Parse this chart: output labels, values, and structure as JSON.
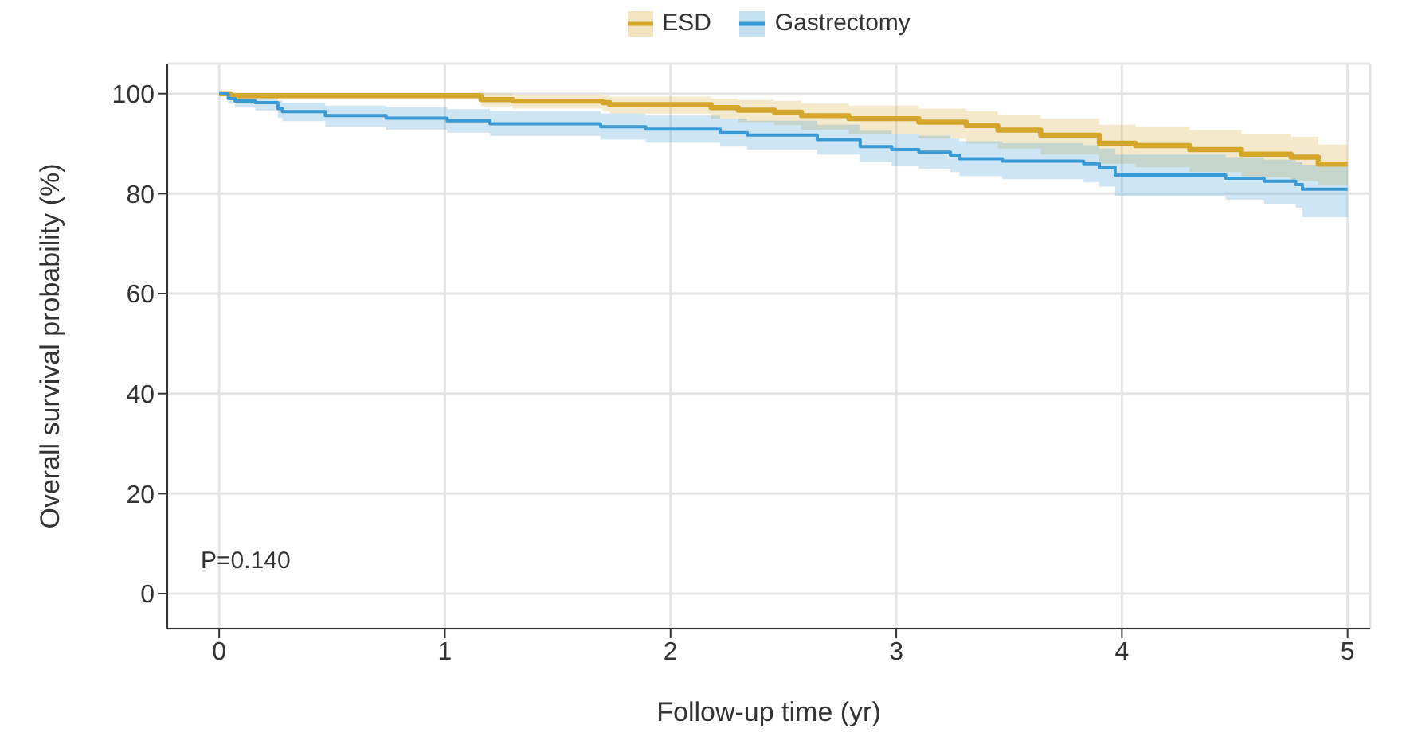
{
  "chart_data": {
    "type": "step",
    "xlabel": "Follow-up time (yr)",
    "ylabel": "Overall survival probability (%)",
    "xlim": [
      -0.23,
      5.1
    ],
    "xticks": [
      0,
      1,
      2,
      3,
      4,
      5
    ],
    "ylim": [
      -7,
      106
    ],
    "yticks": [
      0,
      20,
      40,
      60,
      80,
      100
    ],
    "grid": true,
    "legend": "top",
    "annotations": [
      "P=0.140"
    ],
    "series": [
      {
        "name": "ESD",
        "color": "#d4a72c",
        "x": [
          0,
          0.05,
          1.16,
          1.3,
          1.7,
          1.73,
          2.18,
          2.3,
          2.46,
          2.58,
          2.79,
          3.1,
          3.31,
          3.45,
          3.64,
          3.9,
          4.06,
          4.3,
          4.53,
          4.75,
          4.87,
          5
        ],
        "values": [
          100,
          99.6,
          98.8,
          98.5,
          98.2,
          97.8,
          97.2,
          96.7,
          96.3,
          95.6,
          95.0,
          94.3,
          93.6,
          92.7,
          91.7,
          90.1,
          89.6,
          88.8,
          87.9,
          87.3,
          85.9,
          85.9
        ],
        "lower": [
          100,
          98.8,
          97.5,
          97,
          96.5,
          96,
          95,
          94.3,
          93.7,
          92.8,
          92,
          91,
          90,
          89,
          87.8,
          86,
          85.3,
          84.3,
          83.2,
          82.5,
          81.8,
          81.8
        ],
        "upper": [
          100,
          100,
          100,
          99.8,
          99.6,
          99.4,
          99,
          98.7,
          98.5,
          98,
          97.6,
          97,
          96.5,
          95.8,
          95,
          93.8,
          93.3,
          92.7,
          92,
          91.4,
          89.8,
          89.8
        ]
      },
      {
        "name": "Gastrectomy",
        "color": "#3a9ad5",
        "x": [
          0,
          0.04,
          0.07,
          0.16,
          0.26,
          0.28,
          0.47,
          0.74,
          1.01,
          1.2,
          1.69,
          1.89,
          2.22,
          2.34,
          2.65,
          2.84,
          2.98,
          3.1,
          3.24,
          3.28,
          3.47,
          3.83,
          3.9,
          3.97,
          4.46,
          4.63,
          4.77,
          4.8,
          5
        ],
        "values": [
          100,
          99,
          98.5,
          98.2,
          97,
          96.4,
          95.6,
          95.1,
          94.6,
          94.0,
          93.4,
          92.9,
          92.2,
          91.7,
          90.8,
          89.4,
          88.8,
          88.3,
          87.7,
          87.0,
          86.5,
          86.0,
          85.2,
          83.7,
          83.1,
          82.5,
          81.8,
          80.9,
          80.9
        ],
        "lower": [
          100,
          98,
          97.2,
          96.6,
          95.2,
          94.5,
          93.4,
          92.8,
          92.2,
          91.5,
          90.8,
          90.2,
          89.4,
          88.8,
          87.8,
          86.3,
          85.6,
          85,
          84.3,
          83.5,
          82.9,
          82.3,
          81.4,
          79.6,
          78.8,
          78,
          77.2,
          75.3,
          75.3
        ],
        "upper": [
          100,
          100,
          99.6,
          99.4,
          98.6,
          98.2,
          97.6,
          97.3,
          96.9,
          96.5,
          96,
          95.6,
          95,
          94.6,
          93.8,
          92.6,
          92,
          91.6,
          91,
          90.5,
          90.1,
          89.7,
          89,
          87.8,
          87.3,
          86.8,
          86.3,
          85.8,
          85.8
        ]
      }
    ]
  }
}
